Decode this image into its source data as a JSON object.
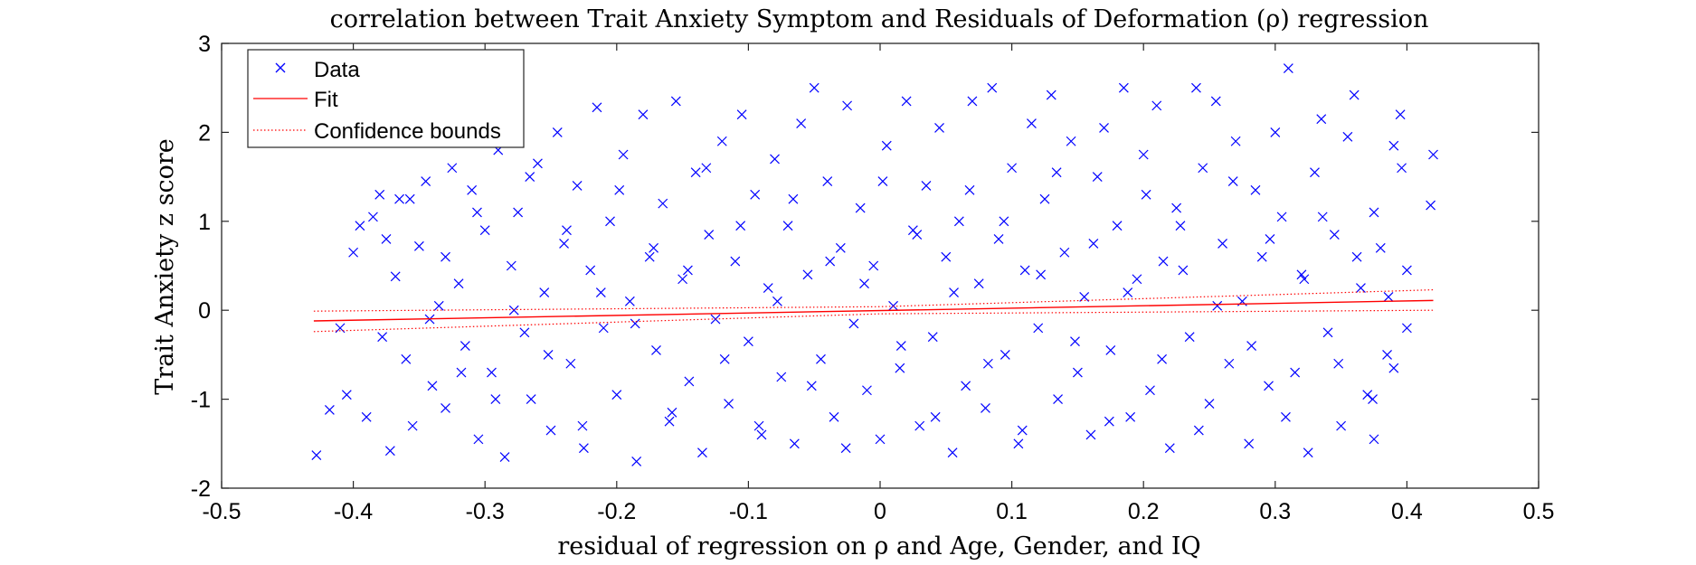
{
  "chart_data": {
    "type": "scatter",
    "title": "correlation between Trait Anxiety Symptom and Residuals of Deformation (ρ) regression",
    "xlabel": "residual of regression on ρ and Age, Gender, and IQ",
    "ylabel": "Trait Anxiety z score",
    "xlim": [
      -0.5,
      0.5
    ],
    "ylim": [
      -2,
      3
    ],
    "xticks": [
      -0.5,
      -0.4,
      -0.3,
      -0.2,
      -0.1,
      0,
      0.1,
      0.2,
      0.3,
      0.4,
      0.5
    ],
    "xtick_labels": [
      "-0.5",
      "-0.4",
      "-0.3",
      "-0.2",
      "-0.1",
      "0",
      "0.1",
      "0.2",
      "0.3",
      "0.4",
      "0.5"
    ],
    "yticks": [
      -2,
      -1,
      0,
      1,
      2,
      3
    ],
    "ytick_labels": [
      "-2",
      "-1",
      "0",
      "1",
      "2",
      "3"
    ],
    "grid": false,
    "legend": {
      "position": "top-left",
      "entries": [
        "Data",
        "Fit",
        "Confidence bounds"
      ]
    },
    "colors": {
      "data": "#0000ff",
      "fit": "#ff0000",
      "bounds": "#ff0000"
    },
    "series": [
      {
        "name": "Data",
        "style": "x-marker",
        "points": [
          [
            -0.428,
            -1.63
          ],
          [
            -0.418,
            -1.12
          ],
          [
            -0.405,
            -0.95
          ],
          [
            -0.4,
            0.65
          ],
          [
            -0.395,
            0.95
          ],
          [
            -0.39,
            -1.2
          ],
          [
            -0.385,
            1.05
          ],
          [
            -0.38,
            1.3
          ],
          [
            -0.378,
            -0.3
          ],
          [
            -0.372,
            -1.58
          ],
          [
            -0.368,
            0.38
          ],
          [
            -0.365,
            1.25
          ],
          [
            -0.36,
            -0.55
          ],
          [
            -0.355,
            -1.3
          ],
          [
            -0.35,
            0.72
          ],
          [
            -0.345,
            1.45
          ],
          [
            -0.34,
            -0.85
          ],
          [
            -0.335,
            0.05
          ],
          [
            -0.33,
            -1.1
          ],
          [
            -0.325,
            1.6
          ],
          [
            -0.32,
            0.3
          ],
          [
            -0.315,
            -0.4
          ],
          [
            -0.31,
            1.35
          ],
          [
            -0.305,
            -1.45
          ],
          [
            -0.3,
            0.9
          ],
          [
            -0.295,
            -0.7
          ],
          [
            -0.29,
            1.8
          ],
          [
            -0.285,
            -1.65
          ],
          [
            -0.28,
            0.5
          ],
          [
            -0.275,
            1.1
          ],
          [
            -0.27,
            -0.25
          ],
          [
            -0.265,
            -1.0
          ],
          [
            -0.26,
            1.65
          ],
          [
            -0.255,
            0.2
          ],
          [
            -0.25,
            -1.35
          ],
          [
            -0.245,
            2.0
          ],
          [
            -0.24,
            0.75
          ],
          [
            -0.235,
            -0.6
          ],
          [
            -0.23,
            1.4
          ],
          [
            -0.225,
            -1.55
          ],
          [
            -0.22,
            0.45
          ],
          [
            -0.215,
            2.28
          ],
          [
            -0.21,
            -0.2
          ],
          [
            -0.205,
            1.0
          ],
          [
            -0.2,
            -0.95
          ],
          [
            -0.195,
            1.75
          ],
          [
            -0.19,
            0.1
          ],
          [
            -0.185,
            -1.7
          ],
          [
            -0.18,
            2.2
          ],
          [
            -0.175,
            0.6
          ],
          [
            -0.17,
            -0.45
          ],
          [
            -0.165,
            1.2
          ],
          [
            -0.16,
            -1.25
          ],
          [
            -0.155,
            2.35
          ],
          [
            -0.15,
            0.35
          ],
          [
            -0.145,
            -0.8
          ],
          [
            -0.14,
            1.55
          ],
          [
            -0.135,
            -1.6
          ],
          [
            -0.13,
            0.85
          ],
          [
            -0.125,
            -0.1
          ],
          [
            -0.12,
            1.9
          ],
          [
            -0.115,
            -1.05
          ],
          [
            -0.11,
            0.55
          ],
          [
            -0.105,
            2.2
          ],
          [
            -0.1,
            -0.35
          ],
          [
            -0.095,
            1.3
          ],
          [
            -0.09,
            -1.4
          ],
          [
            -0.085,
            0.25
          ],
          [
            -0.08,
            1.7
          ],
          [
            -0.075,
            -0.75
          ],
          [
            -0.07,
            0.95
          ],
          [
            -0.065,
            -1.5
          ],
          [
            -0.06,
            2.1
          ],
          [
            -0.055,
            0.4
          ],
          [
            -0.05,
            2.5
          ],
          [
            -0.045,
            -0.55
          ],
          [
            -0.04,
            1.45
          ],
          [
            -0.035,
            -1.2
          ],
          [
            -0.03,
            0.7
          ],
          [
            -0.025,
            2.3
          ],
          [
            -0.02,
            -0.15
          ],
          [
            -0.015,
            1.15
          ],
          [
            -0.01,
            -0.9
          ],
          [
            -0.005,
            0.5
          ],
          [
            0.0,
            -1.45
          ],
          [
            0.005,
            1.85
          ],
          [
            0.01,
            0.05
          ],
          [
            0.015,
            -0.65
          ],
          [
            0.02,
            2.35
          ],
          [
            0.025,
            0.9
          ],
          [
            0.03,
            -1.3
          ],
          [
            0.035,
            1.4
          ],
          [
            0.04,
            -0.3
          ],
          [
            0.045,
            2.05
          ],
          [
            0.05,
            0.6
          ],
          [
            0.055,
            -1.6
          ],
          [
            0.06,
            1.0
          ],
          [
            0.065,
            -0.85
          ],
          [
            0.07,
            2.35
          ],
          [
            0.075,
            0.3
          ],
          [
            0.08,
            -1.1
          ],
          [
            0.085,
            2.5
          ],
          [
            0.09,
            0.8
          ],
          [
            0.095,
            -0.5
          ],
          [
            0.1,
            1.6
          ],
          [
            0.105,
            -1.5
          ],
          [
            0.11,
            0.45
          ],
          [
            0.115,
            2.1
          ],
          [
            0.12,
            -0.2
          ],
          [
            0.125,
            1.25
          ],
          [
            0.13,
            2.42
          ],
          [
            0.135,
            -1.0
          ],
          [
            0.14,
            0.65
          ],
          [
            0.145,
            1.9
          ],
          [
            0.15,
            -0.7
          ],
          [
            0.155,
            0.15
          ],
          [
            0.16,
            -1.4
          ],
          [
            0.165,
            1.5
          ],
          [
            0.17,
            2.05
          ],
          [
            0.175,
            -0.45
          ],
          [
            0.18,
            0.95
          ],
          [
            0.185,
            2.5
          ],
          [
            0.19,
            -1.2
          ],
          [
            0.195,
            0.35
          ],
          [
            0.2,
            1.75
          ],
          [
            0.205,
            -0.9
          ],
          [
            0.21,
            2.3
          ],
          [
            0.215,
            0.55
          ],
          [
            0.22,
            -1.55
          ],
          [
            0.225,
            1.15
          ],
          [
            0.23,
            0.45
          ],
          [
            0.235,
            -0.3
          ],
          [
            0.24,
            2.5
          ],
          [
            0.245,
            1.6
          ],
          [
            0.25,
            -1.05
          ],
          [
            0.255,
            2.35
          ],
          [
            0.26,
            0.75
          ],
          [
            0.265,
            -0.6
          ],
          [
            0.27,
            1.9
          ],
          [
            0.275,
            0.1
          ],
          [
            0.28,
            -1.5
          ],
          [
            0.285,
            1.35
          ],
          [
            0.29,
            0.6
          ],
          [
            0.295,
            -0.85
          ],
          [
            0.3,
            2.0
          ],
          [
            0.305,
            1.05
          ],
          [
            0.31,
            2.72
          ],
          [
            0.315,
            -0.7
          ],
          [
            0.32,
            0.4
          ],
          [
            0.325,
            -1.6
          ],
          [
            0.33,
            1.55
          ],
          [
            0.335,
            2.15
          ],
          [
            0.34,
            -0.25
          ],
          [
            0.345,
            0.85
          ],
          [
            0.35,
            -1.3
          ],
          [
            0.355,
            1.95
          ],
          [
            0.36,
            2.42
          ],
          [
            0.365,
            0.25
          ],
          [
            0.37,
            -0.95
          ],
          [
            0.375,
            1.1
          ],
          [
            0.38,
            0.7
          ],
          [
            0.385,
            -0.5
          ],
          [
            0.39,
            1.85
          ],
          [
            0.395,
            2.2
          ],
          [
            0.4,
            -0.2
          ],
          [
            0.42,
            1.75
          ],
          [
            0.418,
            1.18
          ],
          [
            0.4,
            0.45
          ],
          [
            0.39,
            -0.65
          ],
          [
            0.375,
            -1.45
          ],
          [
            -0.41,
            -0.2
          ],
          [
            -0.375,
            0.8
          ],
          [
            -0.357,
            1.25
          ],
          [
            -0.342,
            -0.1
          ],
          [
            -0.33,
            0.6
          ],
          [
            -0.318,
            -0.7
          ],
          [
            -0.306,
            1.1
          ],
          [
            -0.292,
            -1.0
          ],
          [
            -0.278,
            0.0
          ],
          [
            -0.266,
            1.5
          ],
          [
            -0.252,
            -0.5
          ],
          [
            -0.238,
            0.9
          ],
          [
            -0.226,
            -1.3
          ],
          [
            -0.212,
            0.2
          ],
          [
            -0.198,
            1.35
          ],
          [
            -0.186,
            -0.15
          ],
          [
            -0.172,
            0.7
          ],
          [
            -0.158,
            -1.15
          ],
          [
            -0.146,
            0.45
          ],
          [
            -0.132,
            1.6
          ],
          [
            -0.118,
            -0.55
          ],
          [
            -0.106,
            0.95
          ],
          [
            -0.092,
            -1.3
          ],
          [
            -0.078,
            0.1
          ],
          [
            -0.066,
            1.25
          ],
          [
            -0.052,
            -0.85
          ],
          [
            -0.038,
            0.55
          ],
          [
            -0.026,
            -1.55
          ],
          [
            -0.012,
            0.3
          ],
          [
            0.002,
            1.45
          ],
          [
            0.016,
            -0.4
          ],
          [
            0.028,
            0.85
          ],
          [
            0.042,
            -1.2
          ],
          [
            0.056,
            0.2
          ],
          [
            0.068,
            1.35
          ],
          [
            0.082,
            -0.6
          ],
          [
            0.094,
            1.0
          ],
          [
            0.108,
            -1.35
          ],
          [
            0.122,
            0.4
          ],
          [
            0.134,
            1.55
          ],
          [
            0.148,
            -0.35
          ],
          [
            0.162,
            0.75
          ],
          [
            0.174,
            -1.25
          ],
          [
            0.188,
            0.2
          ],
          [
            0.202,
            1.3
          ],
          [
            0.214,
            -0.55
          ],
          [
            0.228,
            0.95
          ],
          [
            0.242,
            -1.35
          ],
          [
            0.256,
            0.05
          ],
          [
            0.268,
            1.45
          ],
          [
            0.282,
            -0.4
          ],
          [
            0.296,
            0.8
          ],
          [
            0.308,
            -1.2
          ],
          [
            0.322,
            0.35
          ],
          [
            0.336,
            1.05
          ],
          [
            0.348,
            -0.6
          ],
          [
            0.362,
            0.6
          ],
          [
            0.374,
            -1.0
          ],
          [
            0.386,
            0.15
          ],
          [
            0.396,
            1.6
          ]
        ]
      },
      {
        "name": "Fit",
        "style": "line",
        "x": [
          -0.43,
          0.42
        ],
        "y": [
          -0.12,
          0.11
        ]
      },
      {
        "name": "Confidence bounds",
        "style": "dotted",
        "upper": {
          "x": [
            -0.43,
            0.0,
            0.42
          ],
          "y": [
            -0.01,
            0.04,
            0.23
          ]
        },
        "lower": {
          "x": [
            -0.43,
            0.0,
            0.42
          ],
          "y": [
            -0.24,
            -0.04,
            0.0
          ]
        }
      }
    ]
  }
}
